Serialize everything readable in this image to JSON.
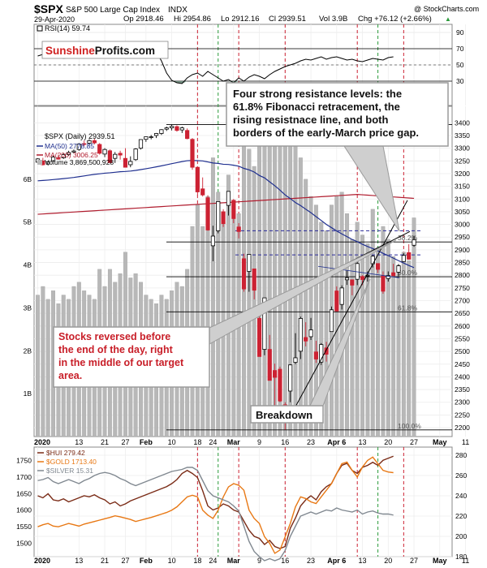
{
  "header": {
    "symbol": "$SPX",
    "name": "S&P 500 Large Cap Index",
    "exchange": "INDX",
    "credit": "@ StockCharts.com",
    "date": "29-Apr-2020",
    "op": "Op 2918.46",
    "hi": "Hi 2954.86",
    "lo": "Lo 2912.16",
    "cl": "Cl 2939.51",
    "vol": "Vol 3.9B",
    "chg": "Chg +76.12 (+2.66%)",
    "chg_arrow": "▲"
  },
  "logo": {
    "part1": "Sunshine",
    "part2": "Profits.com"
  },
  "colors": {
    "up": "#ffffff",
    "down": "#cc2233",
    "ma50": "#1f2f8f",
    "ma200": "#b01c2e",
    "volume": "#b8b8b8",
    "hui": "#7a2b16",
    "gold": "#e87814",
    "silver": "#808890",
    "green_line": "#2a9a3a",
    "red_line": "#cc2233",
    "navy_dash": "#2b2b9a"
  },
  "annotations": {
    "resistance": [
      "Four strong resistance levels: the",
      "61.8% Fibonacci retracement, the",
      "rising resistnace line, and both",
      "borders of the early-March price gap."
    ],
    "reversal": [
      "Stocks reversed before",
      "the end of the day, right",
      "in the middle of our target",
      "area."
    ],
    "breakdown": "Breakdown"
  },
  "chart_data": [
    {
      "type": "line",
      "title": "RSI(14) 59.74",
      "series_name": "RSI(14)",
      "ylim": [
        0,
        100
      ],
      "ticks": [
        30,
        50,
        70,
        90
      ],
      "tick_labels": [
        "30",
        "50",
        "70",
        "90"
      ],
      "values": [
        61,
        63,
        62,
        65,
        60,
        58,
        59,
        61,
        62,
        63,
        64,
        66,
        65,
        67,
        66,
        68,
        70,
        72,
        69,
        71,
        70,
        69,
        68,
        66,
        55,
        40,
        31,
        28,
        27,
        34,
        38,
        40,
        36,
        42,
        38,
        34,
        30,
        32,
        28,
        34,
        30,
        35,
        38,
        36,
        33,
        38,
        42,
        45,
        48,
        50,
        52,
        55,
        57,
        56,
        58,
        60,
        57,
        59,
        60,
        58,
        56,
        57,
        55,
        54,
        56,
        58,
        57,
        56,
        59,
        60
      ]
    },
    {
      "type": "candlestick",
      "title": "$SPX (Daily) 2939.51",
      "legend": [
        "MA(50) 2778.85",
        "MA(200) 3006.25",
        "Volume 3,869,500,928"
      ],
      "x_labels": [
        "2020",
        "13",
        "21",
        "27",
        "Feb",
        "10",
        "18",
        "24",
        "Mar",
        "9",
        "16",
        "23",
        "Apr 6",
        "13",
        "20",
        "27",
        "May",
        "11"
      ],
      "ylim": [
        2165,
        3465
      ],
      "price_ticks": [
        2200,
        2250,
        2300,
        2350,
        2400,
        2450,
        2500,
        2550,
        2600,
        2650,
        2700,
        2750,
        2800,
        2850,
        2900,
        2950,
        3000,
        3050,
        3100,
        3150,
        3200,
        3250,
        3300,
        3350,
        3400
      ],
      "price_tick_labels": [
        "2200",
        "2250",
        "2300",
        "2350",
        "2400",
        "2450",
        "2500",
        "2550",
        "2600",
        "2650",
        "2700",
        "2750",
        "2800",
        "2850",
        "2900",
        "2950",
        "3000",
        "3050",
        "3100",
        "3150",
        "3200",
        "3250",
        "3300",
        "3350",
        "3400"
      ],
      "volume_ticks": [
        1,
        2,
        3,
        4,
        5,
        6
      ],
      "volume_tick_labels": [
        "1B",
        "2B",
        "3B",
        "4B",
        "5B",
        "6B"
      ],
      "volume_max": 7.7,
      "fib_levels": [
        {
          "label": "61.8%",
          "value": 2656
        },
        {
          "label": "50.0%",
          "value": 2794
        },
        {
          "label": "38.2%",
          "value": 2931
        },
        {
          "label": "100.0%",
          "value": 2191
        }
      ],
      "horizontal_levels": [
        2656,
        2794,
        2880,
        2931,
        2975,
        3393
      ],
      "candles": [
        {
          "o": 3245,
          "h": 3260,
          "l": 3235,
          "c": 3258,
          "v": 3.3
        },
        {
          "o": 3250,
          "h": 3262,
          "l": 3232,
          "c": 3235,
          "v": 3.5
        },
        {
          "o": 3238,
          "h": 3250,
          "l": 3232,
          "c": 3246,
          "v": 3.2
        },
        {
          "o": 3250,
          "h": 3270,
          "l": 3248,
          "c": 3265,
          "v": 3.4
        },
        {
          "o": 3262,
          "h": 3275,
          "l": 3255,
          "c": 3257,
          "v": 3.1
        },
        {
          "o": 3262,
          "h": 3280,
          "l": 3258,
          "c": 3275,
          "v": 3.3
        },
        {
          "o": 3275,
          "h": 3290,
          "l": 3270,
          "c": 3283,
          "v": 3.2
        },
        {
          "o": 3285,
          "h": 3295,
          "l": 3280,
          "c": 3289,
          "v": 3.5
        },
        {
          "o": 3295,
          "h": 3320,
          "l": 3290,
          "c": 3316,
          "v": 3.6
        },
        {
          "o": 3318,
          "h": 3330,
          "l": 3308,
          "c": 3317,
          "v": 3.4
        },
        {
          "o": 3320,
          "h": 3335,
          "l": 3310,
          "c": 3330,
          "v": 3.3
        },
        {
          "o": 3330,
          "h": 3337,
          "l": 3315,
          "c": 3321,
          "v": 3.2
        },
        {
          "o": 3315,
          "h": 3320,
          "l": 3275,
          "c": 3280,
          "v": 3.9
        },
        {
          "o": 3277,
          "h": 3300,
          "l": 3265,
          "c": 3295,
          "v": 3.5
        },
        {
          "o": 3290,
          "h": 3295,
          "l": 3245,
          "c": 3243,
          "v": 3.9
        },
        {
          "o": 3260,
          "h": 3285,
          "l": 3242,
          "c": 3276,
          "v": 3.6
        },
        {
          "o": 3280,
          "h": 3290,
          "l": 3255,
          "c": 3273,
          "v": 3.8
        },
        {
          "o": 3260,
          "h": 3300,
          "l": 3225,
          "c": 3225,
          "v": 4.3
        },
        {
          "o": 3235,
          "h": 3268,
          "l": 3225,
          "c": 3248,
          "v": 3.7
        },
        {
          "o": 3255,
          "h": 3300,
          "l": 3250,
          "c": 3297,
          "v": 3.8
        },
        {
          "o": 3300,
          "h": 3335,
          "l": 3295,
          "c": 3334,
          "v": 3.6
        },
        {
          "o": 3335,
          "h": 3345,
          "l": 3325,
          "c": 3345,
          "v": 3.3
        },
        {
          "o": 3345,
          "h": 3352,
          "l": 3335,
          "c": 3345,
          "v": 3.2
        },
        {
          "o": 3350,
          "h": 3360,
          "l": 3340,
          "c": 3358,
          "v": 3.1
        },
        {
          "o": 3358,
          "h": 3375,
          "l": 3352,
          "c": 3373,
          "v": 3.3
        },
        {
          "o": 3375,
          "h": 3385,
          "l": 3368,
          "c": 3380,
          "v": 3.2
        },
        {
          "o": 3380,
          "h": 3394,
          "l": 3370,
          "c": 3386,
          "v": 3.4
        },
        {
          "o": 3385,
          "h": 3390,
          "l": 3365,
          "c": 3370,
          "v": 3.6
        },
        {
          "o": 3372,
          "h": 3385,
          "l": 3360,
          "c": 3380,
          "v": 3.5
        },
        {
          "o": 3370,
          "h": 3378,
          "l": 3335,
          "c": 3338,
          "v": 3.9
        },
        {
          "o": 3335,
          "h": 3340,
          "l": 3215,
          "c": 3225,
          "v": 4.9
        },
        {
          "o": 3225,
          "h": 3225,
          "l": 3115,
          "c": 3128,
          "v": 5.4
        },
        {
          "o": 3140,
          "h": 3185,
          "l": 3110,
          "c": 3116,
          "v": 4.9
        },
        {
          "o": 3105,
          "h": 3115,
          "l": 2975,
          "c": 2978,
          "v": 5.6
        },
        {
          "o": 2916,
          "h": 2995,
          "l": 2855,
          "c": 2954,
          "v": 6.5
        },
        {
          "o": 2975,
          "h": 3090,
          "l": 2965,
          "c": 3090,
          "v": 5.7
        },
        {
          "o": 3050,
          "h": 3060,
          "l": 2990,
          "c": 3003,
          "v": 5.0
        },
        {
          "o": 3075,
          "h": 3130,
          "l": 3035,
          "c": 3130,
          "v": 6.1
        },
        {
          "o": 3095,
          "h": 3100,
          "l": 3005,
          "c": 3023,
          "v": 5.5
        },
        {
          "o": 2990,
          "h": 3005,
          "l": 2945,
          "c": 2972,
          "v": 5.2
        },
        {
          "o": 2865,
          "h": 2885,
          "l": 2735,
          "c": 2746,
          "v": 7.3
        },
        {
          "o": 2815,
          "h": 2880,
          "l": 2735,
          "c": 2882,
          "v": 6.7
        },
        {
          "o": 2825,
          "h": 2825,
          "l": 2705,
          "c": 2741,
          "v": 6.3
        },
        {
          "o": 2630,
          "h": 2660,
          "l": 2480,
          "c": 2480,
          "v": 7.4
        },
        {
          "o": 2508,
          "h": 2710,
          "l": 2485,
          "c": 2711,
          "v": 7.0
        },
        {
          "o": 2508,
          "h": 2565,
          "l": 2390,
          "c": 2386,
          "v": 7.0
        },
        {
          "o": 2425,
          "h": 2452,
          "l": 2280,
          "c": 2398,
          "v": 6.9
        },
        {
          "o": 2430,
          "h": 2440,
          "l": 2300,
          "c": 2305,
          "v": 7.5
        },
        {
          "o": 2290,
          "h": 2300,
          "l": 2192,
          "c": 2237,
          "v": 7.4
        },
        {
          "o": 2344,
          "h": 2450,
          "l": 2300,
          "c": 2447,
          "v": 7.2
        },
        {
          "o": 2457,
          "h": 2572,
          "l": 2450,
          "c": 2475,
          "v": 7.3
        },
        {
          "o": 2501,
          "h": 2637,
          "l": 2470,
          "c": 2630,
          "v": 6.5
        },
        {
          "o": 2555,
          "h": 2615,
          "l": 2520,
          "c": 2541,
          "v": 6.0
        },
        {
          "o": 2558,
          "h": 2632,
          "l": 2545,
          "c": 2585,
          "v": 5.6
        },
        {
          "o": 2498,
          "h": 2542,
          "l": 2455,
          "c": 2470,
          "v": 5.4
        },
        {
          "o": 2458,
          "h": 2533,
          "l": 2447,
          "c": 2527,
          "v": 5.0
        },
        {
          "o": 2514,
          "h": 2538,
          "l": 2460,
          "c": 2489,
          "v": 4.8
        },
        {
          "o": 2578,
          "h": 2677,
          "l": 2578,
          "c": 2664,
          "v": 5.4
        },
        {
          "o": 2738,
          "h": 2756,
          "l": 2657,
          "c": 2659,
          "v": 5.6
        },
        {
          "o": 2685,
          "h": 2760,
          "l": 2665,
          "c": 2750,
          "v": 5.7
        },
        {
          "o": 2782,
          "h": 2818,
          "l": 2762,
          "c": 2790,
          "v": 5.2
        },
        {
          "o": 2782,
          "h": 2782,
          "l": 2721,
          "c": 2761,
          "v": 4.6
        },
        {
          "o": 2784,
          "h": 2853,
          "l": 2761,
          "c": 2846,
          "v": 5.0
        },
        {
          "o": 2795,
          "h": 2800,
          "l": 2761,
          "c": 2783,
          "v": 4.7
        },
        {
          "o": 2800,
          "h": 2815,
          "l": 2775,
          "c": 2800,
          "v": 4.5
        },
        {
          "o": 2845,
          "h": 2879,
          "l": 2830,
          "c": 2875,
          "v": 5.3
        },
        {
          "o": 2846,
          "h": 2846,
          "l": 2809,
          "c": 2823,
          "v": 4.4
        },
        {
          "o": 2797,
          "h": 2815,
          "l": 2727,
          "c": 2737,
          "v": 4.9
        },
        {
          "o": 2787,
          "h": 2815,
          "l": 2775,
          "c": 2799,
          "v": 4.6
        },
        {
          "o": 2810,
          "h": 2845,
          "l": 2800,
          "c": 2798,
          "v": 4.2
        },
        {
          "o": 2812,
          "h": 2844,
          "l": 2796,
          "c": 2837,
          "v": 4.0
        },
        {
          "o": 2854,
          "h": 2887,
          "l": 2852,
          "c": 2878,
          "v": 4.3
        },
        {
          "o": 2889,
          "h": 2922,
          "l": 2861,
          "c": 2863,
          "v": 4.1
        },
        {
          "o": 2918,
          "h": 2955,
          "l": 2912,
          "c": 2940,
          "v": 5.1
        }
      ]
    },
    {
      "type": "line",
      "title": "",
      "x_labels": [
        "2020",
        "13",
        "21",
        "27",
        "Feb",
        "10",
        "18",
        "24",
        "Mar",
        "9",
        "16",
        "23",
        "Apr 6",
        "13",
        "20",
        "27",
        "May",
        "11"
      ],
      "left_ylim": [
        1460,
        1790
      ],
      "left_ticks": [
        1500,
        1550,
        1600,
        1650,
        1700,
        1750
      ],
      "left_tick_labels": [
        "1500",
        "1550",
        "1600",
        "1650",
        "1700",
        "1750"
      ],
      "right_ylim": [
        180,
        288
      ],
      "right_ticks": [
        180,
        200,
        220,
        240,
        260,
        280
      ],
      "right_tick_labels": [
        "180",
        "200",
        "220",
        "240",
        "260",
        "280"
      ],
      "series": [
        {
          "name": "$HUI 279.42",
          "axis": "right",
          "values": [
            240,
            238,
            242,
            236,
            235,
            237,
            234,
            236,
            238,
            240,
            239,
            241,
            238,
            236,
            232,
            234,
            230,
            232,
            235,
            237,
            239,
            241,
            243,
            245,
            247,
            249,
            252,
            256,
            262,
            265,
            262,
            258,
            245,
            230,
            226,
            228,
            232,
            230,
            226,
            224,
            215,
            206,
            200,
            198,
            192,
            196,
            190,
            188,
            190,
            208,
            218,
            230,
            236,
            240,
            236,
            244,
            249,
            252,
            262,
            270,
            272,
            265,
            262,
            268,
            270,
            273,
            270,
            275,
            277,
            279
          ]
        },
        {
          "name": "$GOLD 1713.40",
          "axis": "left",
          "values": [
            1550,
            1556,
            1560,
            1552,
            1550,
            1555,
            1560,
            1556,
            1552,
            1558,
            1562,
            1566,
            1570,
            1574,
            1578,
            1583,
            1580,
            1576,
            1572,
            1566,
            1570,
            1574,
            1578,
            1583,
            1588,
            1593,
            1600,
            1610,
            1625,
            1640,
            1645,
            1640,
            1600,
            1585,
            1575,
            1600,
            1640,
            1670,
            1680,
            1675,
            1660,
            1600,
            1575,
            1560,
            1520,
            1500,
            1470,
            1480,
            1520,
            1560,
            1610,
            1640,
            1635,
            1625,
            1620,
            1640,
            1660,
            1680,
            1710,
            1740,
            1745,
            1720,
            1700,
            1730,
            1750,
            1760,
            1740,
            1720,
            1715,
            1713
          ]
        },
        {
          "name": "$SILVER 15.31",
          "axis": "right",
          "values": [
            255,
            256,
            258,
            254,
            252,
            254,
            256,
            254,
            252,
            255,
            257,
            260,
            262,
            263,
            262,
            260,
            257,
            255,
            252,
            250,
            252,
            254,
            256,
            258,
            260,
            262,
            264,
            265,
            266,
            268,
            268,
            265,
            255,
            245,
            240,
            238,
            236,
            234,
            230,
            225,
            210,
            195,
            185,
            180,
            176,
            178,
            176,
            178,
            186,
            200,
            210,
            220,
            222,
            224,
            222,
            224,
            226,
            225,
            228,
            226,
            225,
            224,
            226,
            222,
            224,
            225,
            223,
            222,
            222,
            221
          ]
        }
      ]
    }
  ]
}
